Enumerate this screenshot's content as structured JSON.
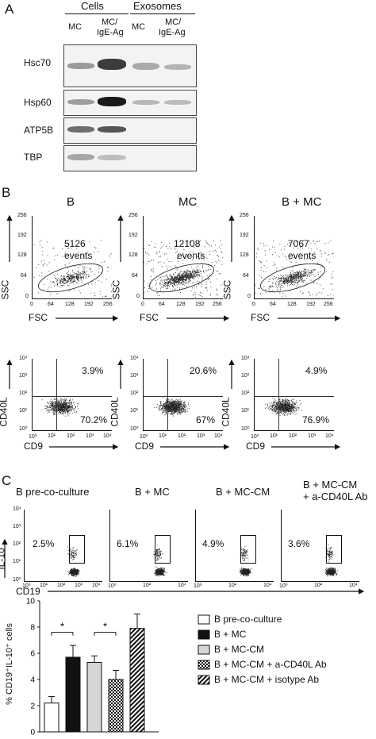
{
  "panel_a": {
    "letter": "A",
    "group_cells": "Cells",
    "group_exosomes": "Exosomes",
    "lanes": [
      "MC",
      "MC/\nIgE-Ag",
      "MC",
      "MC/\nIgE-Ag"
    ],
    "lane_line1": [
      "MC",
      "MC/",
      "MC",
      "MC/"
    ],
    "lane_line2": [
      "",
      "IgE-Ag",
      "",
      "IgE-Ag"
    ],
    "blots": [
      "Hsc70",
      "Hsp60",
      "ATP5B",
      "TBP"
    ]
  },
  "panel_b": {
    "letter": "B",
    "columns": [
      {
        "title": "B",
        "events_count": "5126",
        "events_label": "events",
        "pct_upper": "3.9%",
        "pct_lower": "70.2%"
      },
      {
        "title": "MC",
        "events_count": "12108",
        "events_label": "events",
        "pct_upper": "20.6%",
        "pct_lower": "67%"
      },
      {
        "title": "B + MC",
        "events_count": "7067",
        "events_label": "events",
        "pct_upper": "4.9%",
        "pct_lower": "76.9%"
      }
    ],
    "scatter_xlabel": "FSC",
    "scatter_ylabel": "SSC",
    "scatter_yticks": [
      "256",
      "192",
      "128",
      "64",
      "0"
    ],
    "scatter_xticks": [
      "0",
      "64",
      "128",
      "192",
      "256"
    ],
    "flow_xlabel": "CD9",
    "flow_ylabel": "CD40L",
    "flow_yticks": [
      "10⁴",
      "10³",
      "10²",
      "10¹",
      "10⁰"
    ],
    "flow_xticks": [
      "10⁰",
      "10¹",
      "10²",
      "10³",
      "10⁴"
    ]
  },
  "panel_c": {
    "letter": "C",
    "columns": [
      {
        "title_line1": "B pre-co-culture",
        "title_line2": "",
        "pct": "2.5%"
      },
      {
        "title_line1": "B + MC",
        "title_line2": "",
        "pct": "6.1%"
      },
      {
        "title_line1": "B + MC-CM",
        "title_line2": "",
        "pct": "4.9%"
      },
      {
        "title_line1": "B + MC-CM",
        "title_line2": "+ a-CD40L Ab",
        "pct": "3.6%"
      }
    ],
    "ylabel": "IL-10",
    "xlabel": "CD19",
    "yticks": [
      "10⁴",
      "10³",
      "10²",
      "10¹",
      "10⁰"
    ],
    "xticks": [
      "10⁰",
      "10¹",
      "10²",
      "10³",
      "10⁴"
    ]
  },
  "chart_data": {
    "type": "bar",
    "categories": [
      "B pre-co-culture",
      "B + MC",
      "B + MC-CM",
      "B + MC-CM + a-CD40L Ab",
      "B + MC-CM + isotype Ab"
    ],
    "values": [
      2.2,
      5.7,
      5.3,
      4.0,
      7.9
    ],
    "errors": [
      0.5,
      0.9,
      0.5,
      0.7,
      1.1
    ],
    "patterns": [
      "white",
      "black",
      "lightgray",
      "checker",
      "hatch"
    ],
    "ylabel": "% CD19⁺IL-10⁺ cells",
    "ylim": [
      0,
      10
    ],
    "yticks": [
      "0",
      "2",
      "4",
      "6",
      "8",
      "10"
    ],
    "significance": [
      "*",
      "*"
    ],
    "legend_position": "right"
  }
}
